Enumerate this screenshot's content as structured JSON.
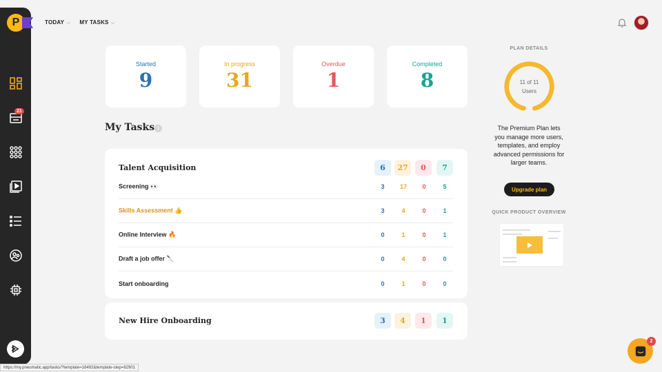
{
  "app": {
    "logo_letter": "P"
  },
  "sidebar": {
    "notification_count": "21"
  },
  "header": {
    "nav": [
      {
        "label": "TODAY"
      },
      {
        "label": "MY TASKS"
      }
    ]
  },
  "stats": [
    {
      "label": "Started",
      "value": "9",
      "color": "#2a72b5"
    },
    {
      "label": "In progress",
      "value": "31",
      "color": "#e6a81e"
    },
    {
      "label": "Overdue",
      "value": "1",
      "color": "#e05a5a"
    },
    {
      "label": "Completed",
      "value": "8",
      "color": "#1aa394"
    }
  ],
  "my_tasks": {
    "title": "My Tasks",
    "templates": [
      {
        "name": "Talent Acquisition",
        "totals": [
          "6",
          "27",
          "0",
          "7"
        ],
        "steps": [
          {
            "name": "Screening 👀",
            "counts": [
              "3",
              "17",
              "0",
              "5"
            ]
          },
          {
            "name": "Skills Assessment 👍",
            "counts": [
              "3",
              "4",
              "0",
              "1"
            ]
          },
          {
            "name": "Online Interview 🔥",
            "counts": [
              "0",
              "1",
              "0",
              "1"
            ]
          },
          {
            "name": "Draft a job offer 🔪",
            "counts": [
              "0",
              "4",
              "0",
              "0"
            ]
          },
          {
            "name": "Start onboarding",
            "counts": [
              "0",
              "1",
              "0",
              "0"
            ]
          }
        ]
      },
      {
        "name": "New Hire Onboarding",
        "totals": [
          "3",
          "4",
          "1",
          "1"
        ]
      }
    ]
  },
  "plan": {
    "label": "PLAN DETAILS",
    "users_line1": "11 of 11",
    "users_line2": "Users",
    "users_used": 11,
    "users_total": 11,
    "description": "The Premium Plan lets you manage more users, templates, and employ advanced permissions for larger teams.",
    "upgrade_label": "Upgrade plan",
    "quick_label": "QUICK PRODUCT OVERVIEW"
  },
  "chat": {
    "badge": "2"
  },
  "statusbar": {
    "url": "https://my.pneumatic.app/tasks/?template=16492&template-step=82901"
  }
}
